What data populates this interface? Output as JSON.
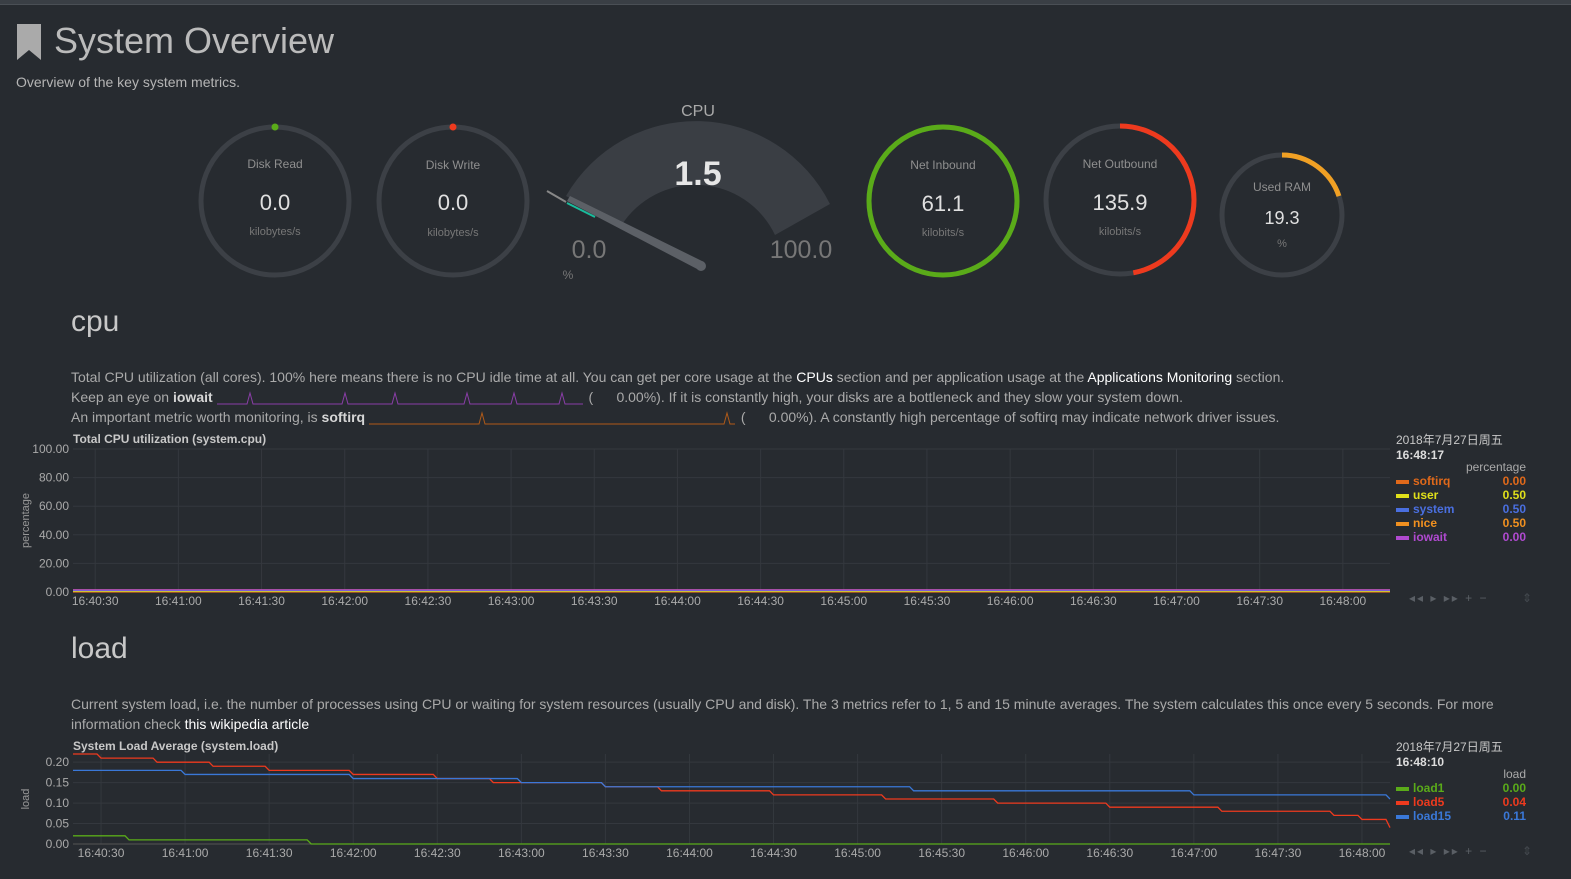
{
  "header": {
    "title": "System Overview",
    "subtitle": "Overview of the key system metrics."
  },
  "gauges": {
    "disk_read": {
      "label": "Disk Read",
      "value": "0.0",
      "unit": "kilobytes/s",
      "fraction": 0.0,
      "color": "#5aab19"
    },
    "disk_write": {
      "label": "Disk Write",
      "value": "0.0",
      "unit": "kilobytes/s",
      "fraction": 0.0,
      "color": "#ee3a1e"
    },
    "cpu": {
      "label": "CPU",
      "value": "1.5",
      "min": "0.0",
      "max": "100.0",
      "unit": "%",
      "fraction": 0.015
    },
    "net_inbound": {
      "label": "Net Inbound",
      "value": "61.1",
      "unit": "kilobits/s",
      "fraction": 1.0,
      "color": "#5aab19"
    },
    "net_outbound": {
      "label": "Net Outbound",
      "value": "135.9",
      "unit": "kilobits/s",
      "fraction": 0.47,
      "color": "#ee3a1e"
    },
    "used_ram": {
      "label": "Used RAM",
      "value": "19.3",
      "unit": "%",
      "fraction": 0.2,
      "color": "#f0a024"
    }
  },
  "cpu_section": {
    "title": "cpu",
    "line1_a": "Total CPU utilization (all cores). 100% here means there is no CPU idle time at all. You can get per core usage at the ",
    "line1_link1": "CPUs",
    "line1_b": " section and per application usage at the ",
    "line1_link2": "Applications Monitoring",
    "line1_c": " section.",
    "line2_a": "Keep an eye on ",
    "line2_b": "iowait",
    "line2_pct": "0.00%",
    "line2_c": "). If it is constantly high, your disks are a bottleneck and they slow your system down.",
    "line3_a": "An important metric worth monitoring, is ",
    "line3_b": "softirq",
    "line3_pct": "0.00%",
    "line3_c": "). A constantly high percentage of softirq may indicate network driver issues.",
    "paren_open": "(",
    "chart_title": "Total CPU utilization (system.cpu)",
    "legend_date": "2018年7月27日周五",
    "legend_time": "16:48:17",
    "legend_unit": "percentage",
    "legend": [
      {
        "name": "softirq",
        "value": "0.00",
        "color": "#e0691a"
      },
      {
        "name": "user",
        "value": "0.50",
        "color": "#e0e01a"
      },
      {
        "name": "system",
        "value": "0.50",
        "color": "#4a6fe0"
      },
      {
        "name": "nice",
        "value": "0.50",
        "color": "#f09020"
      },
      {
        "name": "iowait",
        "value": "0.00",
        "color": "#b04ad0"
      }
    ]
  },
  "load_section": {
    "title": "load",
    "desc1": "Current system load, i.e. the number of processes using CPU or waiting for system resources (usually CPU and disk). The 3 metrics refer to 1, 5 and 15 minute averages. The system calculates this once every 5 seconds. For more",
    "desc2a": "information check ",
    "desc2_link": "this wikipedia article",
    "chart_title": "System Load Average (system.load)",
    "legend_date": "2018年7月27日周五",
    "legend_time": "16:48:10",
    "legend_unit": "load",
    "legend": [
      {
        "name": "load1",
        "value": "0.00",
        "color": "#5aab19"
      },
      {
        "name": "load5",
        "value": "0.04",
        "color": "#ee3a1e"
      },
      {
        "name": "load15",
        "value": "0.11",
        "color": "#3a78d8"
      }
    ]
  },
  "controls": {
    "nav": "◂◂ ▸ ▸▸ + −",
    "resize": "⇕"
  },
  "chart_data": [
    {
      "type": "area",
      "title": "Total CPU utilization (system.cpu)",
      "ylabel": "percentage",
      "ylim": [
        0,
        100
      ],
      "yticks": [
        "100.00",
        "80.00",
        "60.00",
        "40.00",
        "20.00",
        "0.00"
      ],
      "x": [
        "16:40:30",
        "16:41:00",
        "16:41:30",
        "16:42:00",
        "16:42:30",
        "16:43:00",
        "16:43:30",
        "16:44:00",
        "16:44:30",
        "16:45:00",
        "16:45:30",
        "16:46:00",
        "16:46:30",
        "16:47:00",
        "16:47:30",
        "16:48:00"
      ],
      "xlim": [
        "16:40:22",
        "16:48:17"
      ],
      "grid": true,
      "series": [
        {
          "name": "softirq",
          "color": "#e0691a",
          "values": [
            0,
            0,
            0,
            0,
            0,
            0,
            0,
            0,
            0,
            0,
            0,
            0,
            0,
            0,
            0,
            0
          ]
        },
        {
          "name": "user",
          "color": "#e0e01a",
          "values": [
            0.5,
            0.5,
            0.5,
            0.5,
            0.5,
            0.5,
            0.5,
            0.5,
            0.5,
            0.5,
            0.5,
            0.5,
            0.5,
            0.5,
            0.5,
            0.5
          ]
        },
        {
          "name": "system",
          "color": "#4a6fe0",
          "values": [
            0.5,
            0.5,
            0.5,
            0.5,
            0.5,
            0.5,
            0.5,
            0.5,
            0.5,
            0.5,
            0.5,
            0.5,
            0.5,
            0.5,
            0.5,
            0.5
          ]
        },
        {
          "name": "nice",
          "color": "#f09020",
          "values": [
            0.5,
            0.5,
            0.5,
            0.5,
            0.5,
            0.5,
            0.5,
            0.5,
            0.5,
            0.5,
            0.5,
            0.5,
            0.5,
            0.5,
            0.5,
            0.5
          ]
        },
        {
          "name": "iowait",
          "color": "#b04ad0",
          "values": [
            0,
            0,
            0,
            0,
            0,
            0,
            0,
            0,
            0,
            0,
            0,
            0,
            0,
            0,
            0,
            0
          ]
        }
      ]
    },
    {
      "type": "line",
      "title": "System Load Average (system.load)",
      "ylabel": "load",
      "ylim": [
        0,
        0.22
      ],
      "yticks": [
        "0.20",
        "0.15",
        "0.10",
        "0.05",
        "0.00"
      ],
      "x": [
        "16:40:30",
        "16:41:00",
        "16:41:30",
        "16:42:00",
        "16:42:30",
        "16:43:00",
        "16:43:30",
        "16:44:00",
        "16:44:30",
        "16:45:00",
        "16:45:30",
        "16:46:00",
        "16:46:30",
        "16:47:00",
        "16:47:30",
        "16:48:00"
      ],
      "xlim": [
        "16:40:20",
        "16:48:10"
      ],
      "grid": true,
      "series": [
        {
          "name": "load1",
          "color": "#5aab19",
          "points": [
            [
              "16:40:20",
              0.02
            ],
            [
              "16:40:35",
              0.02
            ],
            [
              "16:40:40",
              0.01
            ],
            [
              "16:41:40",
              0.01
            ],
            [
              "16:41:45",
              0.0
            ],
            [
              "16:48:10",
              0.0
            ]
          ]
        },
        {
          "name": "load5",
          "color": "#ee3a1e",
          "points": [
            [
              "16:40:20",
              0.22
            ],
            [
              "16:40:30",
              0.21
            ],
            [
              "16:40:50",
              0.2
            ],
            [
              "16:41:10",
              0.19
            ],
            [
              "16:41:30",
              0.18
            ],
            [
              "16:42:00",
              0.17
            ],
            [
              "16:42:30",
              0.16
            ],
            [
              "16:42:50",
              0.15
            ],
            [
              "16:43:30",
              0.14
            ],
            [
              "16:43:50",
              0.13
            ],
            [
              "16:44:30",
              0.12
            ],
            [
              "16:45:10",
              0.11
            ],
            [
              "16:45:50",
              0.1
            ],
            [
              "16:46:30",
              0.09
            ],
            [
              "16:47:10",
              0.08
            ],
            [
              "16:47:50",
              0.07
            ],
            [
              "16:48:00",
              0.06
            ],
            [
              "16:48:10",
              0.04
            ]
          ]
        },
        {
          "name": "load15",
          "color": "#3a78d8",
          "points": [
            [
              "16:40:20",
              0.18
            ],
            [
              "16:41:00",
              0.17
            ],
            [
              "16:42:00",
              0.16
            ],
            [
              "16:43:00",
              0.15
            ],
            [
              "16:43:30",
              0.14
            ],
            [
              "16:45:20",
              0.13
            ],
            [
              "16:47:00",
              0.12
            ],
            [
              "16:48:10",
              0.11
            ]
          ]
        }
      ]
    }
  ]
}
